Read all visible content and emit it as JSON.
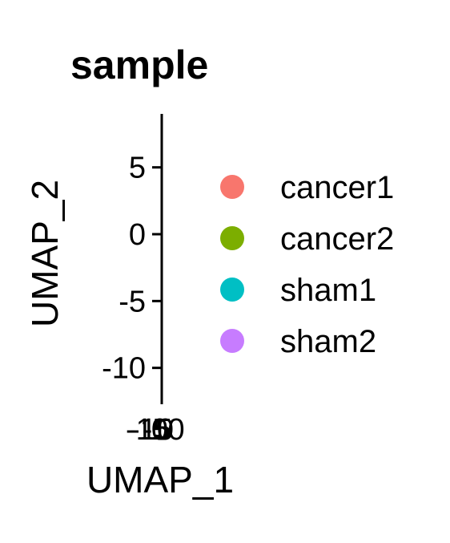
{
  "chart_data": {
    "type": "scatter",
    "title": "sample",
    "xlabel": "UMAP_1",
    "ylabel": "UMAP_2",
    "y_ticks": [
      5,
      0,
      -5,
      -10
    ],
    "y_tick_labels": [
      "5",
      "0",
      "-5",
      "-10"
    ],
    "x_tick_labels": [
      "-15",
      "-10",
      "-5",
      "0",
      "5",
      "10"
    ],
    "ylim": [
      -12,
      9
    ],
    "grid": false,
    "legend_position": "right",
    "series": [
      {
        "name": "cancer1",
        "color": "#F8766D",
        "points": []
      },
      {
        "name": "cancer2",
        "color": "#7CAE00",
        "points": []
      },
      {
        "name": "sham1",
        "color": "#00BFC4",
        "points": []
      },
      {
        "name": "sham2",
        "color": "#C77CFF",
        "points": []
      }
    ]
  }
}
